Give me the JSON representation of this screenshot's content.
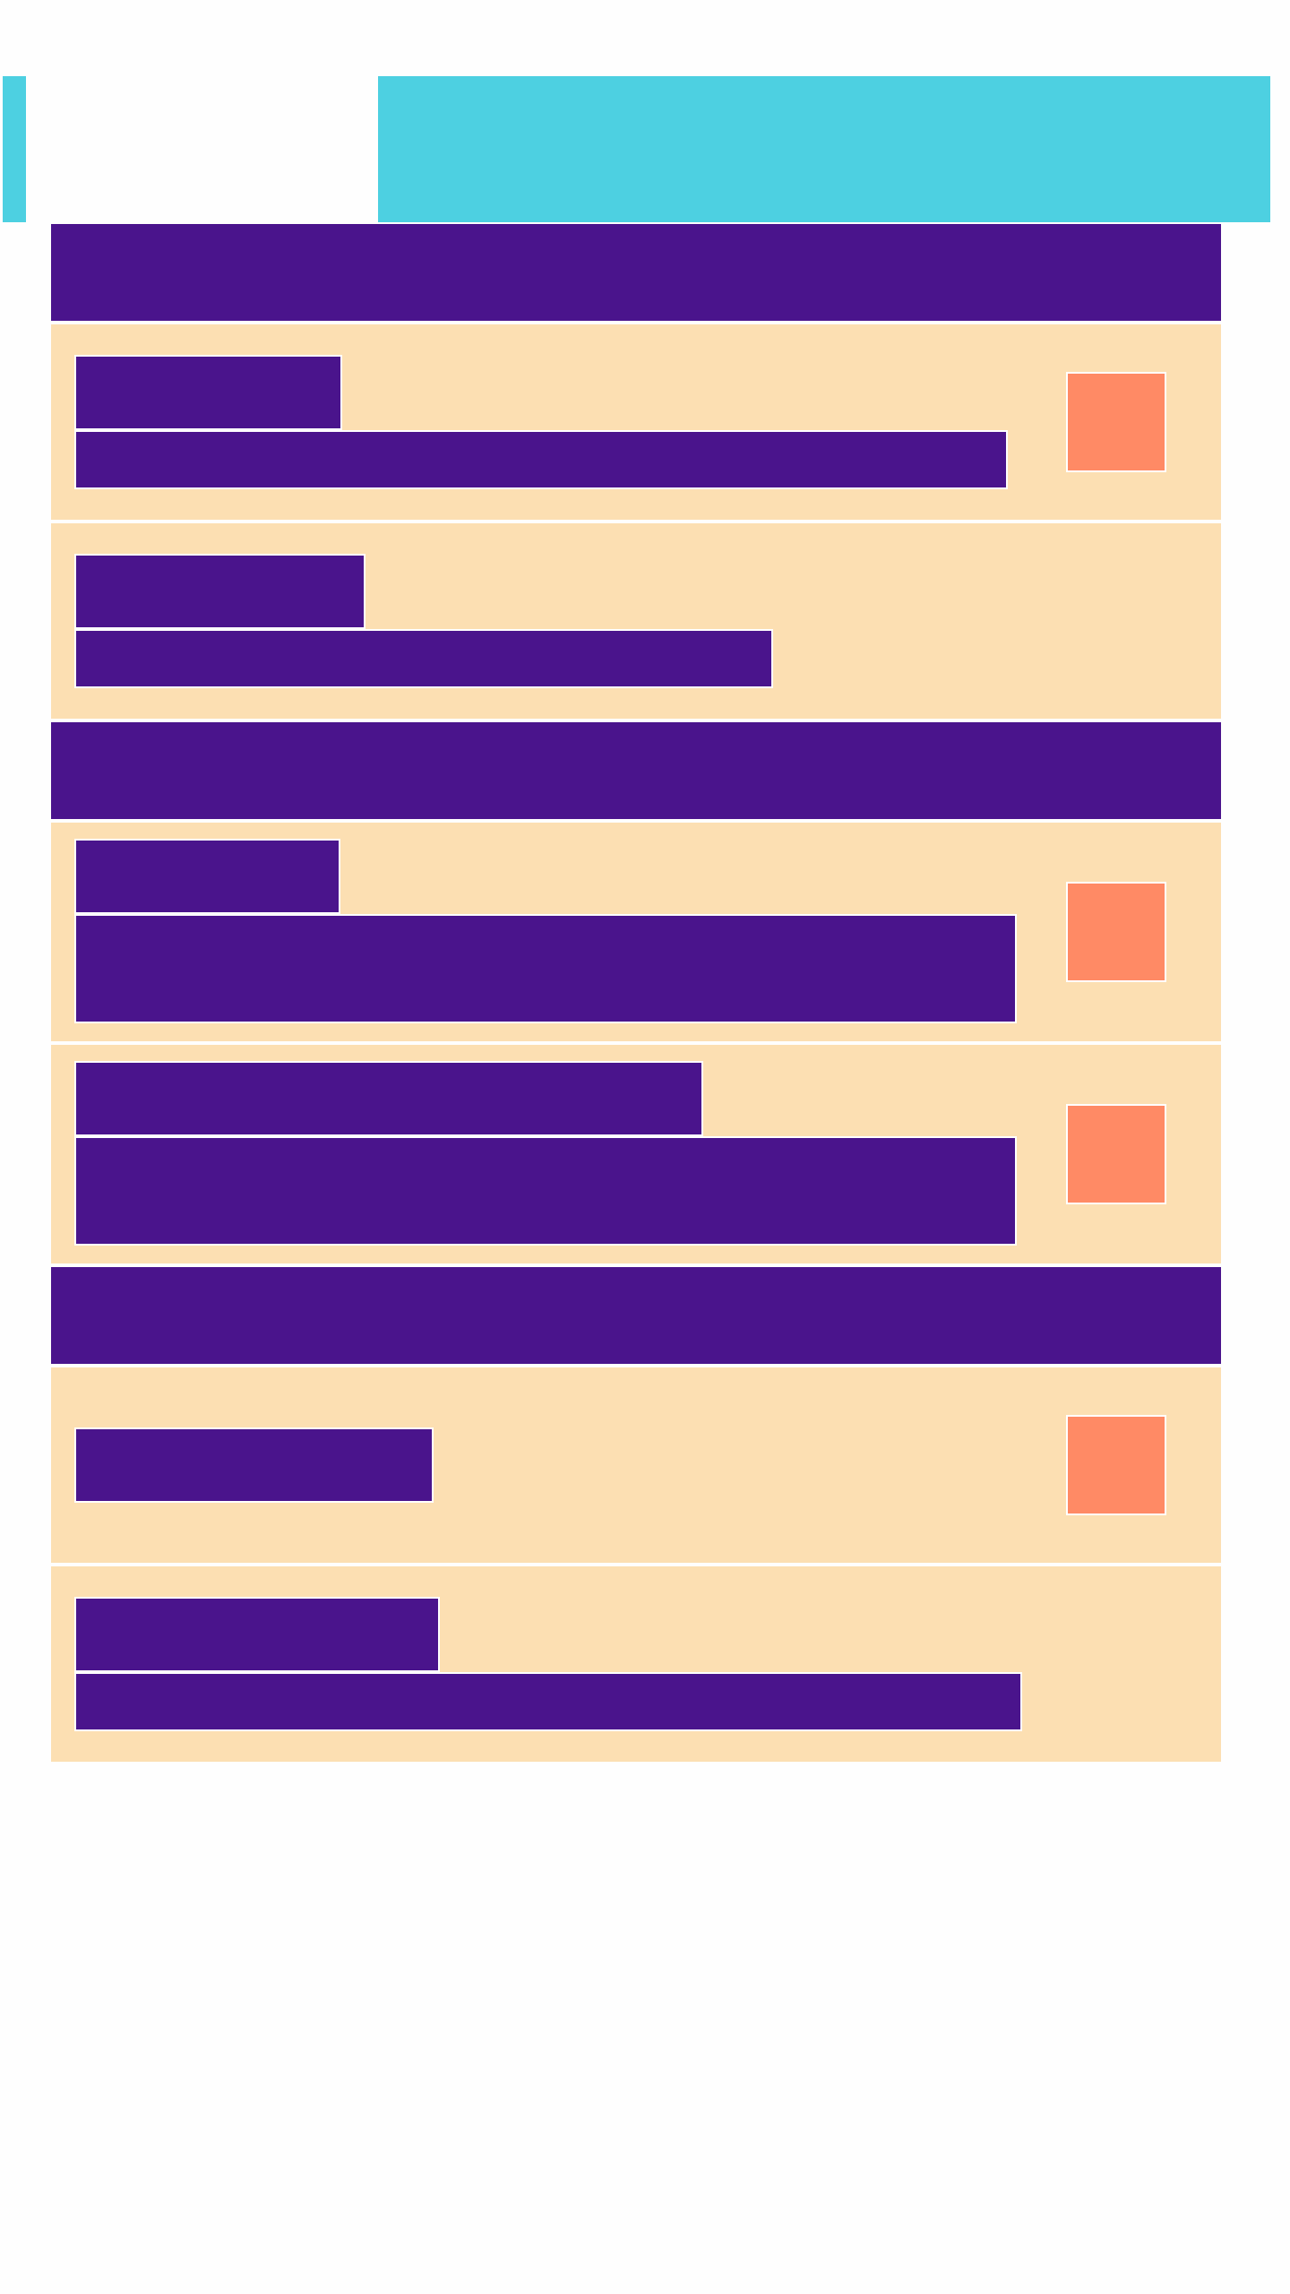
{
  "colors": {
    "accent": "#4dd0e1",
    "header": "#4a148c",
    "row": "#fcdfb2",
    "thumb": "#ff8a65",
    "background": "#fefefe"
  },
  "app_bar": {
    "back_icon": "back-arrow-icon",
    "banner": "app-bar-banner"
  },
  "sections": [
    {
      "name": "section-1",
      "rows": [
        {
          "name": "row-1-1",
          "has_thumbnail": true,
          "title_lines": 1,
          "subtitle_lines": 1
        },
        {
          "name": "row-1-2",
          "has_thumbnail": false,
          "title_lines": 1,
          "subtitle_lines": 1
        }
      ]
    },
    {
      "name": "section-2",
      "rows": [
        {
          "name": "row-2-1",
          "has_thumbnail": true,
          "title_lines": 1,
          "subtitle_lines": 2
        },
        {
          "name": "row-2-2",
          "has_thumbnail": true,
          "title_lines": 1,
          "subtitle_lines": 2
        }
      ]
    },
    {
      "name": "section-3",
      "rows": [
        {
          "name": "row-3-1",
          "has_thumbnail": true,
          "title_lines": 1,
          "subtitle_lines": 0
        },
        {
          "name": "row-3-2",
          "has_thumbnail": false,
          "title_lines": 1,
          "subtitle_lines": 1
        }
      ]
    }
  ]
}
